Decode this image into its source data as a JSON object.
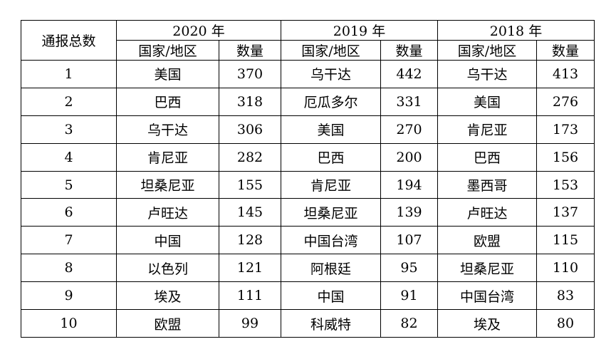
{
  "table": {
    "corner_header": "通报总数",
    "years": [
      "2020 年",
      "2019 年",
      "2018 年"
    ],
    "sub_headers": {
      "country": "国家/地区",
      "count": "数量"
    },
    "rows": [
      {
        "rank": "1",
        "y2020": {
          "country": "美国",
          "count": "370"
        },
        "y2019": {
          "country": "乌干达",
          "count": "442"
        },
        "y2018": {
          "country": "乌干达",
          "count": "413"
        }
      },
      {
        "rank": "2",
        "y2020": {
          "country": "巴西",
          "count": "318"
        },
        "y2019": {
          "country": "厄瓜多尔",
          "count": "331"
        },
        "y2018": {
          "country": "美国",
          "count": "276"
        }
      },
      {
        "rank": "3",
        "y2020": {
          "country": "乌干达",
          "count": "306"
        },
        "y2019": {
          "country": "美国",
          "count": "270"
        },
        "y2018": {
          "country": "肯尼亚",
          "count": "173"
        }
      },
      {
        "rank": "4",
        "y2020": {
          "country": "肯尼亚",
          "count": "282"
        },
        "y2019": {
          "country": "巴西",
          "count": "200"
        },
        "y2018": {
          "country": "巴西",
          "count": "156"
        }
      },
      {
        "rank": "5",
        "y2020": {
          "country": "坦桑尼亚",
          "count": "155"
        },
        "y2019": {
          "country": "肯尼亚",
          "count": "194"
        },
        "y2018": {
          "country": "墨西哥",
          "count": "153"
        }
      },
      {
        "rank": "6",
        "y2020": {
          "country": "卢旺达",
          "count": "145"
        },
        "y2019": {
          "country": "坦桑尼亚",
          "count": "139"
        },
        "y2018": {
          "country": "卢旺达",
          "count": "137"
        }
      },
      {
        "rank": "7",
        "y2020": {
          "country": "中国",
          "count": "128"
        },
        "y2019": {
          "country": "中国台湾",
          "count": "107"
        },
        "y2018": {
          "country": "欧盟",
          "count": "115"
        }
      },
      {
        "rank": "8",
        "y2020": {
          "country": "以色列",
          "count": "121"
        },
        "y2019": {
          "country": "阿根廷",
          "count": "95"
        },
        "y2018": {
          "country": "坦桑尼亚",
          "count": "110"
        }
      },
      {
        "rank": "9",
        "y2020": {
          "country": "埃及",
          "count": "111"
        },
        "y2019": {
          "country": "中国",
          "count": "91"
        },
        "y2018": {
          "country": "中国台湾",
          "count": "83"
        }
      },
      {
        "rank": "10",
        "y2020": {
          "country": "欧盟",
          "count": "99"
        },
        "y2019": {
          "country": "科威特",
          "count": "82"
        },
        "y2018": {
          "country": "埃及",
          "count": "80"
        }
      }
    ]
  }
}
